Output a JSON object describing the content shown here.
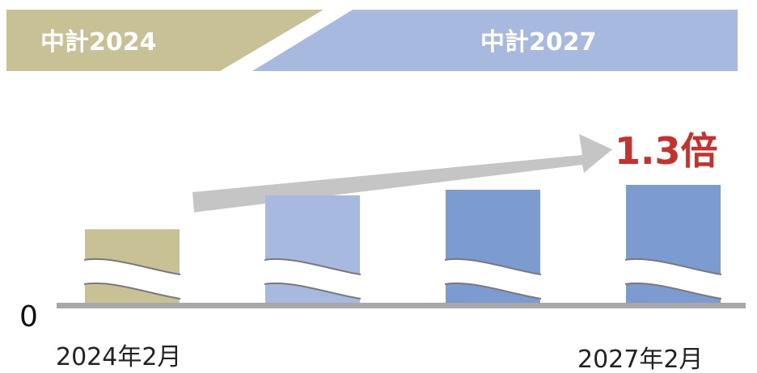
{
  "phases": [
    {
      "label": "中計2024",
      "color": "#c8c196"
    },
    {
      "label": "中計2027",
      "color": "#a7b9de"
    }
  ],
  "chart_data": {
    "type": "bar",
    "categories": [
      "2024年2月",
      "",
      "",
      "2027年2月"
    ],
    "tick_labels": {
      "zero": "0",
      "start": "2024年2月",
      "end": "2027年2月"
    },
    "values": [
      1.0,
      1.23,
      1.27,
      1.3
    ],
    "bar_colors": [
      "#c8c196",
      "#a7b9de",
      "#7b9bd1",
      "#7b9bd1"
    ],
    "axis_break": true,
    "annotation": {
      "text": "1.3倍",
      "color": "#c8302c"
    },
    "arrow_color": "#c5c5c5",
    "axis_color": "#a8a8a8"
  }
}
